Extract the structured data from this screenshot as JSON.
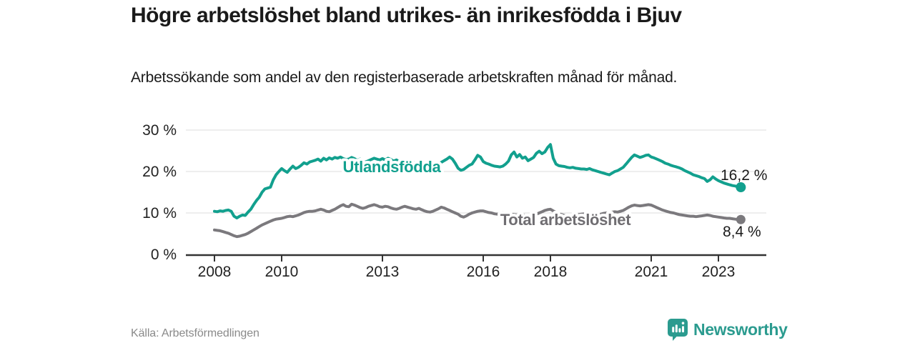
{
  "header": {
    "title": "Högre arbetslöshet bland utrikes- än inrikesfödda i Bjuv",
    "subtitle": "Arbetssökande som andel av den registerbaserade arbetskraften månad för månad."
  },
  "footer": {
    "source": "Källa: Arbetsförmedlingen",
    "brand": "Newsworthy"
  },
  "colors": {
    "series_utlandsfodda": "#12a08e",
    "series_total_line": "#7b797d",
    "series_total_label": "#6f6d71",
    "axis_line": "#333333",
    "axis_text": "#222222",
    "gridline": "#dcdcdc",
    "value_label_text": "#1a1a1a",
    "title_text": "#1a1a1a",
    "source_text": "#8a8a8a",
    "brand_teal": "#2b9b8f"
  },
  "chart_data": {
    "type": "line",
    "title": "Högre arbetslöshet bland utrikes- än inrikesfödda i Bjuv",
    "subtitle": "Arbetssökande som andel av den registerbaserade arbetskraften månad för månad.",
    "x_start": "2008-01",
    "x_end": "2023-09",
    "x_frequency": "monthly",
    "xlabel": "",
    "ylabel": "",
    "ylim": [
      0,
      30
    ],
    "grid": "horizontal-only",
    "legend_position": "inline-labels",
    "ytick_labels": [
      "0 %",
      "10 %",
      "20 %",
      "30 %"
    ],
    "ytick_values": [
      0,
      10,
      20,
      30
    ],
    "xtick_years": [
      2008,
      2010,
      2013,
      2016,
      2018,
      2021,
      2023
    ],
    "series": [
      {
        "name": "Utlandsfödda",
        "color": "#12a08e",
        "end_label": "16,2 %",
        "end_value": 16.2,
        "values": [
          10.4,
          10.3,
          10.5,
          10.4,
          10.6,
          10.7,
          10.4,
          9.2,
          8.8,
          9.2,
          9.5,
          9.4,
          10.2,
          10.9,
          12.0,
          13.0,
          13.8,
          15.0,
          15.8,
          16.0,
          16.2,
          18.0,
          19.2,
          20.0,
          20.7,
          20.2,
          19.8,
          20.6,
          21.3,
          20.7,
          21.0,
          21.5,
          22.1,
          21.8,
          22.3,
          22.5,
          22.7,
          23.0,
          22.5,
          23.2,
          22.8,
          23.3,
          23.0,
          23.4,
          23.2,
          23.5,
          23.1,
          22.9,
          23.0,
          23.4,
          23.1,
          22.7,
          23.0,
          22.6,
          22.3,
          22.6,
          22.9,
          23.2,
          23.0,
          22.8,
          23.1,
          22.8,
          23.2,
          22.9,
          22.5,
          22.8,
          22.4,
          22.1,
          22.4,
          22.7,
          22.4,
          22.2,
          21.9,
          21.4,
          21.0,
          20.7,
          20.4,
          20.6,
          20.9,
          21.3,
          21.8,
          22.2,
          22.6,
          23.0,
          23.5,
          23.0,
          22.0,
          20.8,
          20.3,
          20.5,
          21.0,
          21.5,
          21.8,
          22.8,
          23.9,
          23.5,
          22.4,
          22.0,
          21.8,
          21.5,
          21.3,
          21.2,
          21.1,
          21.3,
          21.8,
          22.5,
          24.0,
          24.7,
          23.5,
          24.1,
          23.2,
          23.5,
          22.6,
          23.0,
          23.4,
          24.4,
          24.9,
          24.3,
          24.7,
          25.8,
          26.5,
          23.2,
          21.8,
          21.4,
          21.3,
          21.2,
          21.0,
          20.9,
          21.0,
          20.8,
          20.7,
          20.6,
          20.6,
          20.5,
          20.7,
          20.4,
          20.2,
          20.0,
          19.8,
          19.6,
          19.4,
          19.2,
          19.6,
          20.0,
          20.2,
          20.6,
          21.0,
          21.8,
          22.6,
          23.4,
          24.0,
          23.7,
          23.4,
          23.6,
          23.9,
          24.0,
          23.5,
          23.3,
          23.0,
          22.7,
          22.4,
          22.0,
          21.8,
          21.5,
          21.3,
          21.1,
          20.9,
          20.6,
          20.2,
          19.9,
          19.6,
          19.2,
          19.0,
          18.8,
          18.5,
          18.3,
          17.6,
          18.0,
          18.7,
          18.2,
          17.8,
          17.5,
          17.2,
          17.0,
          16.8,
          16.6,
          16.5,
          16.3,
          16.2
        ]
      },
      {
        "name": "Total arbetslöshet",
        "color": "#7b797d",
        "end_label": "8,4 %",
        "end_value": 8.4,
        "values": [
          5.9,
          5.8,
          5.7,
          5.5,
          5.3,
          5.1,
          4.8,
          4.5,
          4.3,
          4.4,
          4.6,
          4.8,
          5.1,
          5.5,
          5.9,
          6.3,
          6.7,
          7.1,
          7.4,
          7.7,
          8.0,
          8.3,
          8.5,
          8.6,
          8.7,
          8.9,
          9.1,
          9.2,
          9.1,
          9.3,
          9.5,
          9.8,
          10.1,
          10.3,
          10.4,
          10.4,
          10.5,
          10.7,
          10.9,
          10.7,
          10.4,
          10.3,
          10.6,
          10.9,
          11.3,
          11.7,
          12.0,
          11.6,
          11.5,
          12.1,
          11.9,
          11.6,
          11.3,
          11.1,
          11.3,
          11.6,
          11.8,
          12.0,
          11.8,
          11.5,
          11.4,
          11.6,
          11.5,
          11.2,
          11.0,
          10.9,
          11.1,
          11.4,
          11.6,
          11.4,
          11.2,
          11.0,
          10.9,
          11.1,
          10.8,
          10.5,
          10.3,
          10.2,
          10.4,
          10.7,
          11.0,
          11.4,
          11.2,
          10.9,
          10.6,
          10.3,
          10.0,
          9.7,
          9.2,
          9.0,
          9.3,
          9.7,
          10.0,
          10.2,
          10.4,
          10.5,
          10.5,
          10.3,
          10.1,
          10.0,
          9.8,
          9.7,
          9.9,
          10.1,
          10.0,
          9.8,
          9.7,
          9.6,
          9.5,
          9.7,
          9.6,
          9.4,
          9.3,
          9.2,
          9.4,
          9.7,
          10.0,
          10.3,
          10.6,
          10.8,
          10.9,
          10.5,
          10.1,
          9.8,
          9.6,
          9.4,
          9.3,
          9.2,
          9.4,
          9.5,
          9.6,
          9.7,
          9.8,
          9.9,
          9.8,
          9.7,
          9.6,
          9.5,
          9.7,
          9.9,
          10.0,
          10.1,
          10.2,
          10.3,
          10.2,
          10.4,
          10.6,
          11.0,
          11.4,
          11.7,
          11.9,
          11.8,
          11.7,
          11.8,
          11.9,
          12.0,
          11.9,
          11.6,
          11.3,
          11.0,
          10.7,
          10.5,
          10.3,
          10.1,
          10.0,
          9.8,
          9.6,
          9.5,
          9.4,
          9.3,
          9.2,
          9.2,
          9.1,
          9.2,
          9.3,
          9.4,
          9.5,
          9.4,
          9.2,
          9.1,
          9.0,
          8.9,
          8.8,
          8.7,
          8.7,
          8.6,
          8.5,
          8.4,
          8.4
        ]
      }
    ]
  }
}
